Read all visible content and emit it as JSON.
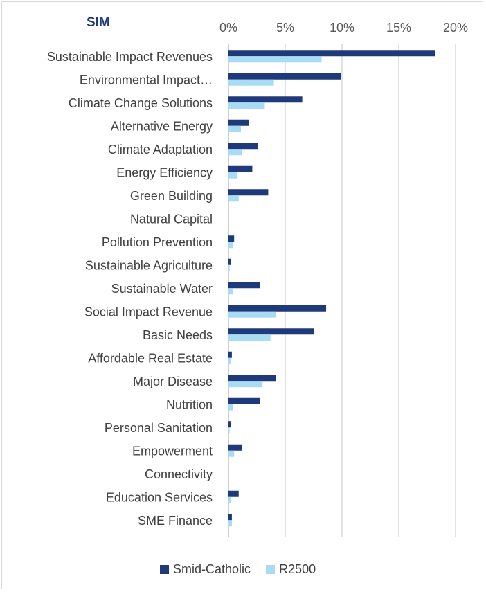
{
  "chart_data": {
    "type": "bar",
    "orientation": "horizontal",
    "title": "SIM",
    "xlabel": "",
    "ylabel": "",
    "xlim": [
      0,
      20
    ],
    "x_ticks": [
      "0%",
      "5%",
      "10%",
      "15%",
      "20%"
    ],
    "x_axis_position": "top",
    "grid": true,
    "legend_position": "bottom",
    "categories": [
      "Sustainable Impact Revenues",
      "Environmental Impact…",
      "Climate Change Solutions",
      "Alternative Energy",
      "Climate Adaptation",
      "Energy Efficiency",
      "Green Building",
      "Natural Capital",
      "Pollution Prevention",
      "Sustainable Agriculture",
      "Sustainable Water",
      "Social Impact Revenue",
      "Basic Needs",
      "Affordable Real Estate",
      "Major Disease",
      "Nutrition",
      "Personal Sanitation",
      "Empowerment",
      "Connectivity",
      "Education Services",
      "SME Finance"
    ],
    "series": [
      {
        "name": "Smid-Catholic",
        "color": "#1f3a7a",
        "values": [
          18.2,
          9.9,
          6.5,
          1.8,
          2.6,
          2.1,
          3.5,
          0,
          0.5,
          0.2,
          2.8,
          8.6,
          7.5,
          0.3,
          4.2,
          2.8,
          0.2,
          1.2,
          0,
          0.9,
          0.3
        ]
      },
      {
        "name": "R2500",
        "color": "#a8dcf5",
        "values": [
          8.2,
          4.0,
          3.2,
          1.1,
          1.2,
          0.8,
          0.9,
          0,
          0.4,
          0.1,
          0.4,
          4.2,
          3.7,
          0.2,
          3.0,
          0.4,
          0.1,
          0.5,
          0,
          0.2,
          0.3
        ]
      }
    ]
  }
}
